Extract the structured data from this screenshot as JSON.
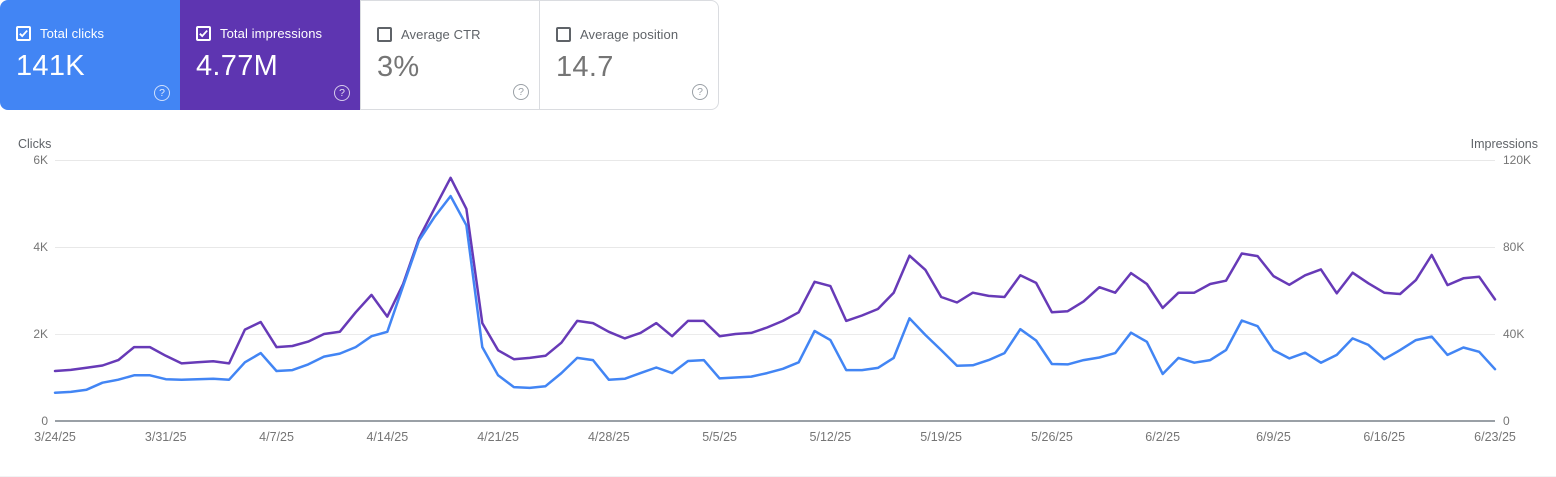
{
  "app": "Search Console Performance",
  "cards": [
    {
      "label": "Total clicks",
      "value": "141K",
      "checked": true,
      "bg": "#4285f4",
      "help_icon": "?"
    },
    {
      "label": "Total impressions",
      "value": "4.77M",
      "checked": true,
      "bg": "#5e35b1",
      "help_icon": "?"
    },
    {
      "label": "Average CTR",
      "value": "3%",
      "checked": false,
      "bg": "#ffffff",
      "help_icon": "?"
    },
    {
      "label": "Average position",
      "value": "14.7",
      "checked": false,
      "bg": "#ffffff",
      "help_icon": "?"
    }
  ],
  "colors": {
    "clicks_line": "#4285f4",
    "impressions_line": "#673ab7",
    "grid": "#e8e8e8",
    "axis_baseline": "#9aa0a6",
    "tick_text": "#757575"
  },
  "chart_data": {
    "type": "line",
    "title": "",
    "interval": "daily",
    "start_date": "3/24/25",
    "end_date": "6/23/25",
    "x_tick_labels": [
      "3/24/25",
      "3/31/25",
      "4/7/25",
      "4/14/25",
      "4/21/25",
      "4/28/25",
      "5/5/25",
      "5/12/25",
      "5/19/25",
      "5/26/25",
      "6/2/25",
      "6/9/25",
      "6/16/25",
      "6/23/25"
    ],
    "left_axis": {
      "label": "Clicks",
      "ticks": [
        "6K",
        "4K",
        "2K",
        "0"
      ],
      "min": 0,
      "max": 6000
    },
    "right_axis": {
      "label": "Impressions",
      "ticks": [
        "120K",
        "80K",
        "40K",
        "0"
      ],
      "min": 0,
      "max": 120000
    },
    "grid": true,
    "legend_position": "none",
    "series": [
      {
        "name": "Total impressions",
        "axis": "right",
        "color": "#673ab7",
        "values": [
          23000,
          23500,
          24500,
          25500,
          28000,
          34000,
          34000,
          30000,
          26500,
          27000,
          27500,
          26500,
          42000,
          45500,
          34000,
          34500,
          36500,
          40000,
          41000,
          50000,
          58000,
          48000,
          63000,
          84000,
          98000,
          111800,
          97500,
          45000,
          32500,
          28400,
          29000,
          30000,
          36000,
          46000,
          45000,
          41000,
          38000,
          40500,
          45000,
          39000,
          46000,
          46000,
          39000,
          40000,
          40500,
          43000,
          46000,
          50000,
          64000,
          62000,
          46000,
          48500,
          51500,
          59000,
          76000,
          69500,
          57000,
          54500,
          59000,
          57500,
          57000,
          67000,
          63500,
          50000,
          50500,
          55000,
          61500,
          59000,
          68000,
          63000,
          52000,
          59000,
          59000,
          63000,
          64500,
          77000,
          75800,
          66600,
          62600,
          67000,
          69700,
          58700,
          68200,
          63300,
          59000,
          58400,
          64800,
          76300,
          62500,
          65600,
          66300,
          55900
        ]
      },
      {
        "name": "Total clicks",
        "axis": "left",
        "color": "#4285f4",
        "values": [
          650,
          670,
          720,
          880,
          950,
          1050,
          1050,
          960,
          950,
          960,
          970,
          950,
          1350,
          1560,
          1150,
          1170,
          1300,
          1480,
          1550,
          1700,
          1950,
          2050,
          3100,
          4150,
          4700,
          5170,
          4500,
          1700,
          1050,
          780,
          760,
          800,
          1100,
          1450,
          1400,
          950,
          970,
          1100,
          1230,
          1100,
          1380,
          1400,
          980,
          1000,
          1020,
          1100,
          1200,
          1350,
          2070,
          1860,
          1170,
          1170,
          1220,
          1450,
          2360,
          1980,
          1630,
          1270,
          1280,
          1400,
          1560,
          2110,
          1850,
          1310,
          1300,
          1400,
          1460,
          1560,
          2030,
          1820,
          1080,
          1450,
          1340,
          1400,
          1630,
          2310,
          2180,
          1630,
          1440,
          1570,
          1340,
          1520,
          1900,
          1750,
          1420,
          1630,
          1860,
          1940,
          1520,
          1690,
          1590,
          1190
        ]
      }
    ]
  }
}
